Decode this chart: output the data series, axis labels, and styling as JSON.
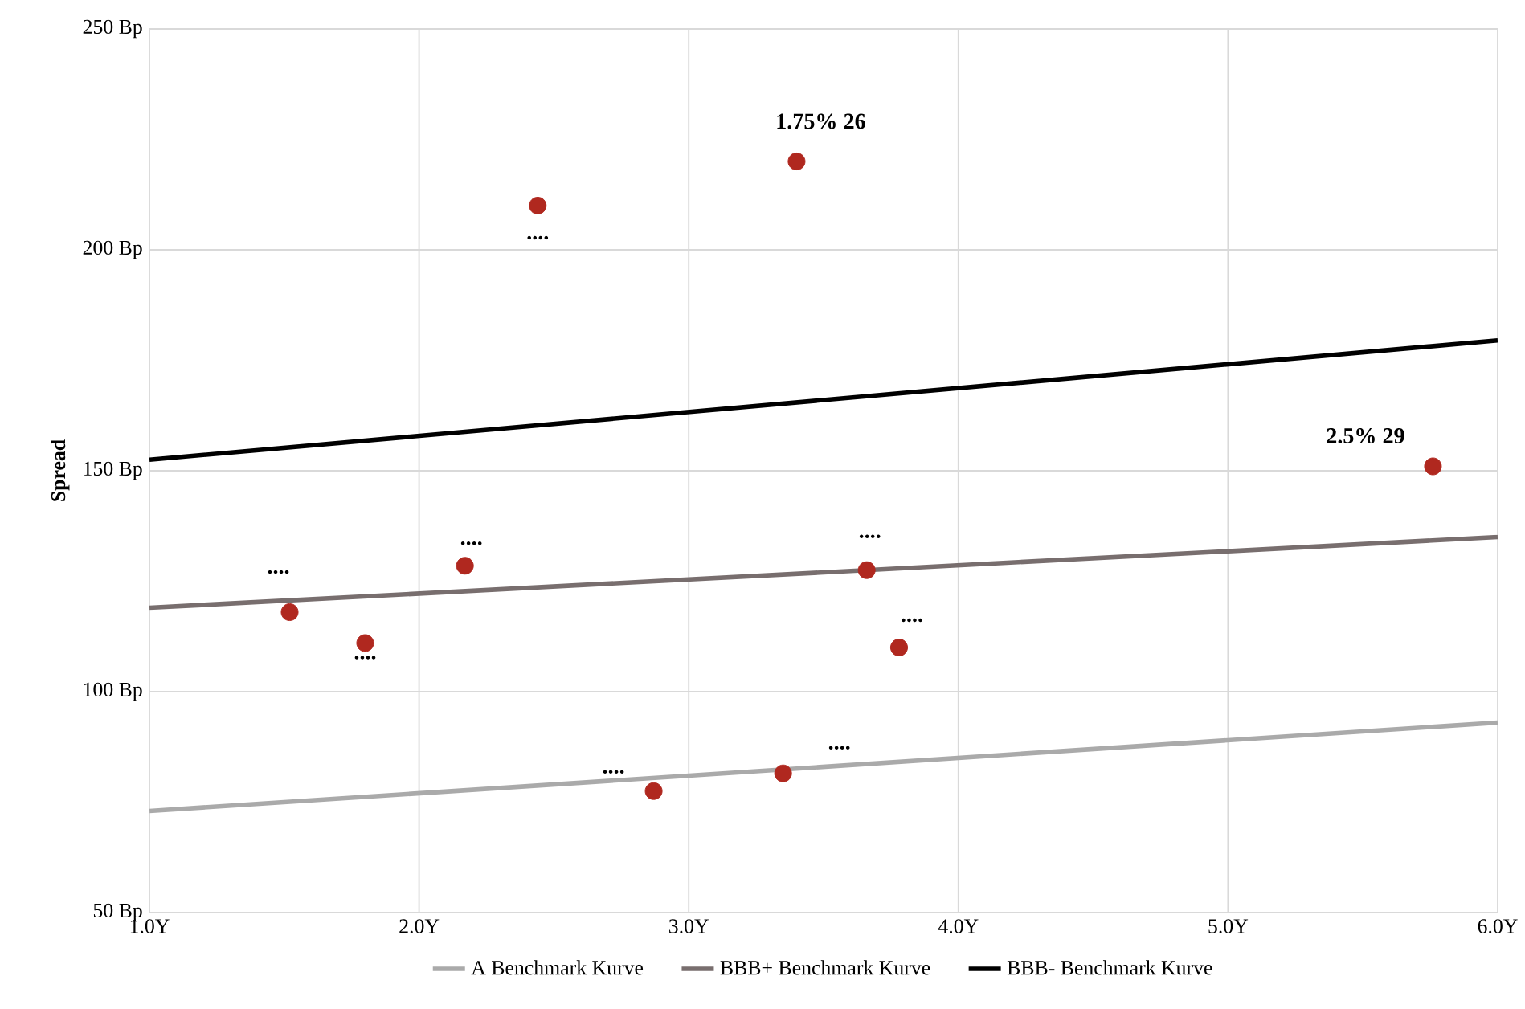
{
  "chart_data": {
    "type": "scatter",
    "ylabel": "Spread",
    "xlim": [
      1,
      6
    ],
    "ylim": [
      50,
      250
    ],
    "xticks": [
      {
        "value": 1,
        "label": "1.0Y"
      },
      {
        "value": 2,
        "label": "2.0Y"
      },
      {
        "value": 3,
        "label": "3.0Y"
      },
      {
        "value": 4,
        "label": "4.0Y"
      },
      {
        "value": 5,
        "label": "5.0Y"
      },
      {
        "value": 6,
        "label": "6.0Y"
      }
    ],
    "yticks": [
      {
        "value": 50,
        "label": "50 Bp"
      },
      {
        "value": 100,
        "label": "100 Bp"
      },
      {
        "value": 150,
        "label": "150 Bp"
      },
      {
        "value": 200,
        "label": "200 Bp"
      },
      {
        "value": 250,
        "label": "250 Bp"
      }
    ],
    "grid": true,
    "legend": "bottom",
    "series": [
      {
        "marker": "circle",
        "color": "#b0281f",
        "x": [
          2.44,
          3.4,
          5.76,
          1.52,
          1.8,
          2.17,
          3.66,
          3.78,
          2.87,
          3.35
        ],
        "values": [
          210,
          220,
          151,
          118,
          111,
          128.5,
          127.5,
          110,
          77.5,
          81.5
        ]
      },
      {
        "type": "line",
        "name": "A Benchmark Kurve",
        "color": "#aaaaaa",
        "x": [
          1,
          6
        ],
        "values": [
          73,
          93
        ]
      },
      {
        "type": "line",
        "name": "BBB+ Benchmark Kurve",
        "color": "#786e6e",
        "x": [
          1,
          6
        ],
        "values": [
          119,
          135
        ]
      },
      {
        "type": "line",
        "name": "BBB- Benchmark Kurve",
        "color": "#000000",
        "x": [
          1,
          6
        ],
        "values": [
          152.5,
          179.5
        ]
      }
    ],
    "annotations": [
      {
        "text": "1.75% 26",
        "x": 3.4,
        "y": 220
      },
      {
        "text": "2.5% 29",
        "x": 5.76,
        "y": 151
      },
      {
        "text": "....",
        "x": 2.44,
        "y": 210
      },
      {
        "text": "....",
        "x": 1.52,
        "y": 118
      },
      {
        "text": "....",
        "x": 1.8,
        "y": 111
      },
      {
        "text": "....",
        "x": 2.17,
        "y": 128.5
      },
      {
        "text": "....",
        "x": 3.66,
        "y": 127.5
      },
      {
        "text": "....",
        "x": 3.78,
        "y": 110
      },
      {
        "text": "....",
        "x": 2.87,
        "y": 77.5
      },
      {
        "text": "....",
        "x": 3.35,
        "y": 81.5
      }
    ]
  }
}
